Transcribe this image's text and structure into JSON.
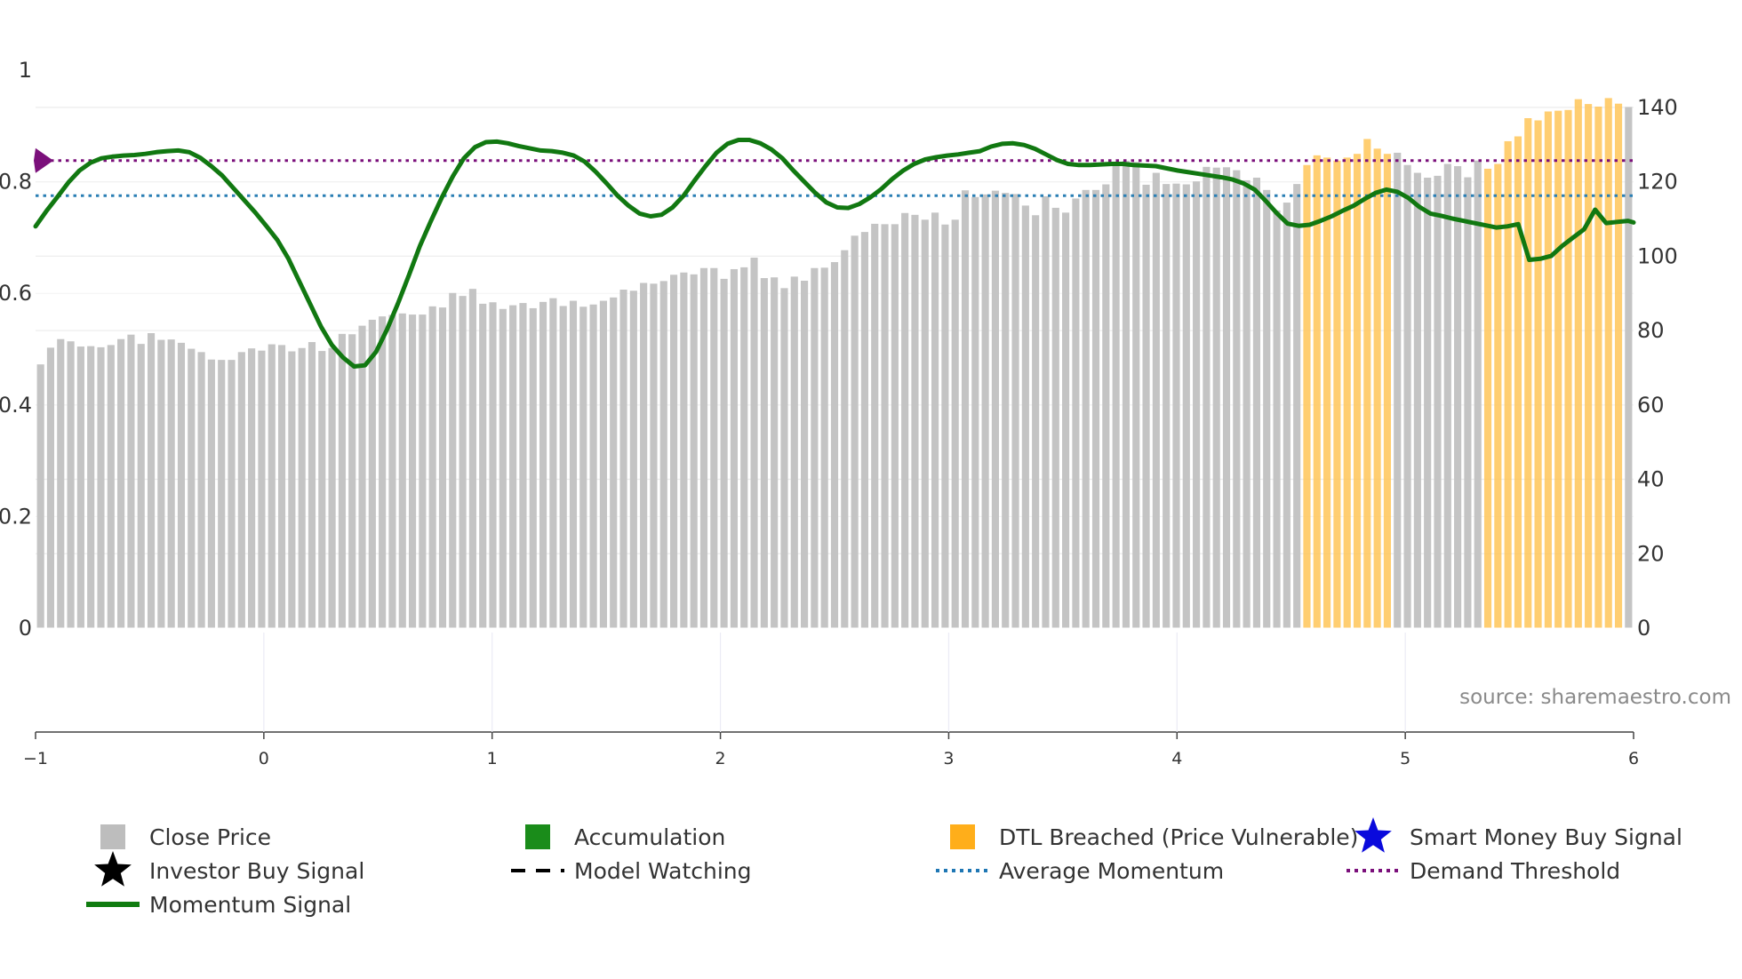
{
  "chart_data": {
    "type": "bar",
    "title": "",
    "source": "source: sharemaestro.com",
    "left_axis": {
      "range": [
        0,
        1
      ],
      "ticks": [
        0,
        0.2,
        0.4,
        0.6,
        0.8,
        1
      ],
      "labels": [
        "0",
        "0.2",
        "0.4",
        "0.6",
        "0.8",
        "1"
      ]
    },
    "right_axis": {
      "range": [
        0,
        150
      ],
      "ticks": [
        0,
        20,
        40,
        60,
        80,
        100,
        120,
        140
      ],
      "labels": [
        "0",
        "20",
        "40",
        "60",
        "80",
        "100",
        "120",
        "140"
      ]
    },
    "x_axis": {
      "range": [
        -1,
        6
      ],
      "ticks": [
        -1,
        0,
        1,
        2,
        3,
        4,
        5,
        6
      ],
      "labels": [
        "−1",
        "0",
        "1",
        "2",
        "3",
        "4",
        "5",
        "6"
      ]
    },
    "average_momentum": 0.775,
    "demand_threshold": 0.838,
    "close_prices": [
      70.9,
      75.4,
      77.7,
      77.1,
      75.7,
      75.8,
      75.5,
      76.1,
      77.7,
      78.9,
      76.4,
      79.3,
      77.5,
      77.6,
      76.7,
      75.1,
      74.2,
      72.2,
      72.1,
      72.1,
      74.2,
      75.2,
      74.6,
      76.3,
      76.1,
      74.4,
      75.3,
      76.9,
      74.5,
      75.3,
      79.1,
      79,
      81.3,
      82.9,
      83.8,
      84.2,
      84.6,
      84.3,
      84.3,
      86.5,
      86.2,
      90.1,
      89.3,
      91.2,
      87.2,
      87.6,
      85.8,
      86.8,
      87.4,
      86,
      87.7,
      88.7,
      86.6,
      88,
      86.4,
      87,
      88,
      88.9,
      91,
      90.7,
      92.8,
      92.6,
      93.3,
      95,
      95.6,
      95.1,
      96.8,
      96.8,
      93.9,
      96.5,
      97,
      99.6,
      94.1,
      94.3,
      91.4,
      94.5,
      93.4,
      96.8,
      96.9,
      98.4,
      101.6,
      105.5,
      106.5,
      108.7,
      108.6,
      108.6,
      111.6,
      111.1,
      109.8,
      111.7,
      108.5,
      109.8,
      117.7,
      115.9,
      116.6,
      117.6,
      117,
      116.7,
      113.6,
      111,
      116.1,
      113,
      111.7,
      115.5,
      117.8,
      117.8,
      119.3,
      125.3,
      125.6,
      125.3,
      119.2,
      122.4,
      119.4,
      119.5,
      119.3,
      120.1,
      124,
      123.8,
      123.9,
      123.1,
      120.4,
      121.1,
      117.8,
      112.3,
      114.4,
      119.4,
      124.5,
      127.1,
      126.5,
      125.7,
      126.5,
      127.5,
      131.5,
      128.9,
      127.5,
      127.8,
      124.5,
      122.4,
      121.1,
      121.6,
      124.8,
      124.2,
      121.2,
      125.7,
      123.5,
      124.8,
      130.9,
      132.2,
      137.1,
      136.5,
      138.9,
      139.1,
      139.3,
      142.2,
      140.9,
      140.2,
      142.5,
      141,
      140.1
    ],
    "dtl_breached_ranges": [
      [
        126,
        134
      ],
      [
        144,
        157
      ]
    ],
    "momentum_points": [
      [
        0,
        0.72
      ],
      [
        2,
        0.748
      ],
      [
        4,
        0.773
      ],
      [
        6,
        0.799
      ],
      [
        8,
        0.82
      ],
      [
        10,
        0.834
      ],
      [
        12,
        0.842
      ],
      [
        14,
        0.845
      ],
      [
        16,
        0.847
      ],
      [
        18,
        0.848
      ],
      [
        20,
        0.85
      ],
      [
        22,
        0.853
      ],
      [
        24,
        0.855
      ],
      [
        26,
        0.856
      ],
      [
        28,
        0.853
      ],
      [
        30,
        0.843
      ],
      [
        32,
        0.828
      ],
      [
        34,
        0.811
      ],
      [
        36,
        0.789
      ],
      [
        38,
        0.767
      ],
      [
        40,
        0.745
      ],
      [
        42,
        0.721
      ],
      [
        44,
        0.696
      ],
      [
        46,
        0.663
      ],
      [
        48,
        0.622
      ],
      [
        50,
        0.581
      ],
      [
        52,
        0.54
      ],
      [
        54,
        0.507
      ],
      [
        56,
        0.485
      ],
      [
        58,
        0.469
      ],
      [
        60,
        0.471
      ],
      [
        62,
        0.495
      ],
      [
        64,
        0.535
      ],
      [
        66,
        0.582
      ],
      [
        68,
        0.633
      ],
      [
        70,
        0.685
      ],
      [
        72,
        0.73
      ],
      [
        74,
        0.772
      ],
      [
        76,
        0.81
      ],
      [
        78,
        0.842
      ],
      [
        80,
        0.862
      ],
      [
        82,
        0.871
      ],
      [
        84,
        0.872
      ],
      [
        86,
        0.869
      ],
      [
        88,
        0.864
      ],
      [
        90,
        0.86
      ],
      [
        92,
        0.856
      ],
      [
        94,
        0.855
      ],
      [
        96,
        0.852
      ],
      [
        98,
        0.847
      ],
      [
        100,
        0.836
      ],
      [
        102,
        0.818
      ],
      [
        104,
        0.797
      ],
      [
        106,
        0.775
      ],
      [
        108,
        0.757
      ],
      [
        110,
        0.743
      ],
      [
        112,
        0.738
      ],
      [
        114,
        0.741
      ],
      [
        116,
        0.754
      ],
      [
        118,
        0.775
      ],
      [
        120,
        0.802
      ],
      [
        122,
        0.828
      ],
      [
        124,
        0.852
      ],
      [
        126,
        0.868
      ],
      [
        128,
        0.875
      ],
      [
        130,
        0.875
      ],
      [
        132,
        0.869
      ],
      [
        134,
        0.858
      ],
      [
        136,
        0.842
      ],
      [
        138,
        0.82
      ],
      [
        140,
        0.8
      ],
      [
        142,
        0.78
      ],
      [
        144,
        0.763
      ],
      [
        146,
        0.754
      ],
      [
        148,
        0.753
      ],
      [
        150,
        0.76
      ],
      [
        152,
        0.772
      ],
      [
        154,
        0.787
      ],
      [
        156,
        0.805
      ],
      [
        158,
        0.82
      ],
      [
        160,
        0.832
      ],
      [
        162,
        0.84
      ],
      [
        164,
        0.844
      ],
      [
        166,
        0.847
      ],
      [
        168,
        0.849
      ],
      [
        170,
        0.852
      ],
      [
        172,
        0.855
      ],
      [
        174,
        0.863
      ],
      [
        176,
        0.868
      ],
      [
        178,
        0.869
      ],
      [
        180,
        0.866
      ],
      [
        182,
        0.859
      ],
      [
        184,
        0.849
      ],
      [
        186,
        0.839
      ],
      [
        188,
        0.832
      ],
      [
        190,
        0.83
      ],
      [
        192,
        0.83
      ],
      [
        194,
        0.831
      ],
      [
        196,
        0.832
      ],
      [
        198,
        0.832
      ],
      [
        200,
        0.83
      ],
      [
        202,
        0.829
      ],
      [
        204,
        0.828
      ],
      [
        206,
        0.824
      ],
      [
        208,
        0.82
      ],
      [
        210,
        0.817
      ],
      [
        212,
        0.814
      ],
      [
        214,
        0.811
      ],
      [
        216,
        0.808
      ],
      [
        218,
        0.804
      ],
      [
        220,
        0.797
      ],
      [
        222,
        0.786
      ],
      [
        224,
        0.766
      ],
      [
        226,
        0.744
      ],
      [
        228,
        0.725
      ],
      [
        230,
        0.721
      ],
      [
        232,
        0.723
      ],
      [
        234,
        0.73
      ],
      [
        236,
        0.738
      ],
      [
        238,
        0.748
      ],
      [
        240,
        0.757
      ],
      [
        242,
        0.769
      ],
      [
        244,
        0.78
      ],
      [
        246,
        0.786
      ],
      [
        248,
        0.782
      ],
      [
        250,
        0.771
      ],
      [
        252,
        0.755
      ],
      [
        254,
        0.743
      ],
      [
        256,
        0.739
      ],
      [
        258,
        0.734
      ],
      [
        260,
        0.73
      ],
      [
        262,
        0.726
      ],
      [
        264,
        0.722
      ],
      [
        266,
        0.718
      ],
      [
        268,
        0.72
      ],
      [
        270,
        0.724
      ],
      [
        272,
        0.66
      ],
      [
        274,
        0.662
      ],
      [
        276,
        0.667
      ],
      [
        278,
        0.685
      ],
      [
        280,
        0.7
      ],
      [
        282,
        0.715
      ],
      [
        284,
        0.75
      ],
      [
        286,
        0.726
      ],
      [
        288,
        0.728
      ],
      [
        290,
        0.73
      ],
      [
        291,
        0.727
      ]
    ],
    "x_of_index_start": -1,
    "x_of_index_end": 6
  },
  "legend": [
    {
      "label": "Close Price",
      "symbol": "square",
      "color": "#bdbdbd"
    },
    {
      "label": "Accumulation",
      "symbol": "square",
      "color": "#1a8c1a"
    },
    {
      "label": "DTL Breached (Price Vulnerable)",
      "symbol": "square",
      "color": "#ffae1a"
    },
    {
      "label": "Smart Money Buy Signal",
      "symbol": "star",
      "color": "#0a0adc"
    },
    {
      "label": "Investor Buy Signal",
      "symbol": "star",
      "color": "#000000"
    },
    {
      "label": "Model Watching",
      "symbol": "dash",
      "color": "#000000"
    },
    {
      "label": "Average Momentum",
      "symbol": "dot",
      "color": "#1f77b4"
    },
    {
      "label": "Demand Threshold",
      "symbol": "dot",
      "color": "#7b107b"
    },
    {
      "label": "Momentum Signal",
      "symbol": "line",
      "color": "#107c10"
    }
  ]
}
